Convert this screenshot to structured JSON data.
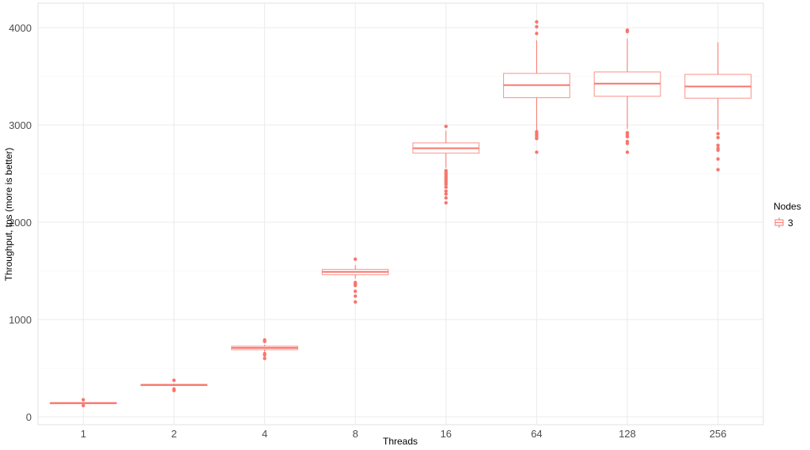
{
  "chart_data": {
    "type": "boxplot",
    "title": "",
    "xlabel": "Threads",
    "ylabel": "Throughput, tps (more is better)",
    "categories": [
      "1",
      "2",
      "4",
      "8",
      "16",
      "64",
      "128",
      "256"
    ],
    "ylim": [
      -80,
      4220
    ],
    "yticks": [
      0,
      1000,
      2000,
      3000,
      4000
    ],
    "y_minor_gridlines": [
      500,
      1500,
      2500,
      3500
    ],
    "grid": true,
    "legend": {
      "title": "Nodes",
      "entries": [
        "3"
      ],
      "position": "right"
    },
    "series": [
      {
        "name": "3",
        "color": "#F8766D",
        "boxes": [
          {
            "x": "1",
            "lower_whisker": 135,
            "q1": 138,
            "median": 142,
            "q3": 146,
            "upper_whisker": 150,
            "outliers": [
              175,
              115
            ]
          },
          {
            "x": "2",
            "lower_whisker": 318,
            "q1": 322,
            "median": 328,
            "q3": 333,
            "upper_whisker": 340,
            "outliers": [
              375,
              285,
              270
            ]
          },
          {
            "x": "4",
            "lower_whisker": 670,
            "q1": 690,
            "median": 708,
            "q3": 725,
            "upper_whisker": 740,
            "outliers": [
              790,
              775,
              650,
              635,
              600
            ]
          },
          {
            "x": "8",
            "lower_whisker": 1420,
            "q1": 1460,
            "median": 1490,
            "q3": 1515,
            "upper_whisker": 1560,
            "outliers": [
              1620,
              1380,
              1370,
              1360,
              1350,
              1290,
              1240,
              1180
            ]
          },
          {
            "x": "16",
            "lower_whisker": 2560,
            "q1": 2710,
            "median": 2760,
            "q3": 2815,
            "upper_whisker": 2940,
            "outliers": [
              2985,
              2530,
              2510,
              2490,
              2470,
              2450,
              2430,
              2410,
              2390,
              2360,
              2320,
              2290,
              2250,
              2200
            ]
          },
          {
            "x": "64",
            "lower_whisker": 2940,
            "q1": 3280,
            "median": 3410,
            "q3": 3530,
            "upper_whisker": 3870,
            "outliers": [
              4060,
              4010,
              3940,
              2930,
              2910,
              2890,
              2870,
              2860,
              2720
            ]
          },
          {
            "x": "128",
            "lower_whisker": 2960,
            "q1": 3295,
            "median": 3425,
            "q3": 3545,
            "upper_whisker": 3890,
            "outliers": [
              3975,
              3960,
              2920,
              2900,
              2880,
              2830,
              2810,
              2720
            ]
          },
          {
            "x": "256",
            "lower_whisker": 2950,
            "q1": 3275,
            "median": 3395,
            "q3": 3520,
            "upper_whisker": 3850,
            "outliers": [
              2910,
              2870,
              2790,
              2760,
              2740,
              2650,
              2540
            ]
          }
        ]
      }
    ]
  },
  "colors": {
    "series": "#F8766D",
    "grid_major": "#ebebeb",
    "grid_minor": "#f5f5f5",
    "panel_border": "#e6e6e6"
  }
}
